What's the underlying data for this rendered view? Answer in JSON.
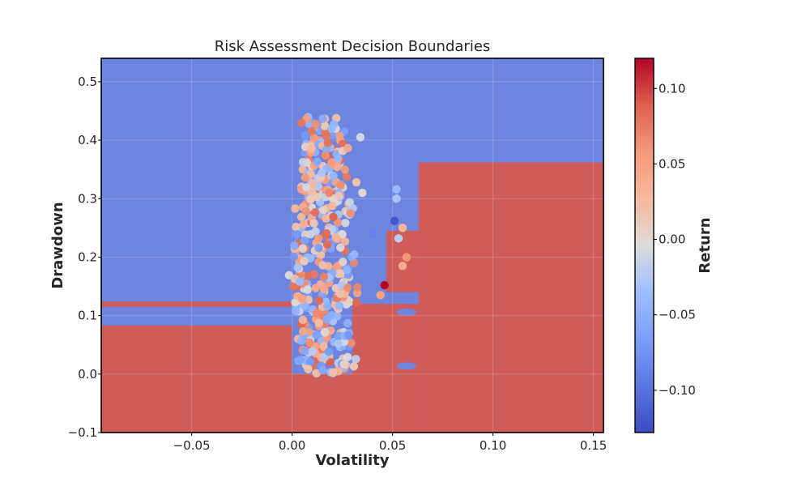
{
  "chart_data": {
    "type": "scatter",
    "title": "Risk Assessment Decision Boundaries",
    "xlabel": "Volatility",
    "ylabel": "Drawdown",
    "xlim": [
      -0.095,
      0.155
    ],
    "ylim": [
      -0.1,
      0.54
    ],
    "xticks": [
      -0.05,
      0.0,
      0.05,
      0.1,
      0.15
    ],
    "xtick_labels": [
      "−0.05",
      "0.00",
      "0.05",
      "0.10",
      "0.15"
    ],
    "yticks": [
      -0.1,
      0.0,
      0.1,
      0.2,
      0.3,
      0.4,
      0.5
    ],
    "ytick_labels": [
      "−0.1",
      "0.0",
      "0.1",
      "0.2",
      "0.3",
      "0.4",
      "0.5"
    ],
    "grid": true,
    "colorbar": {
      "label": "Return",
      "range": [
        -0.128,
        0.12
      ],
      "ticks": [
        -0.1,
        -0.05,
        0.0,
        0.05,
        0.1
      ],
      "tick_labels": [
        "−0.10",
        "−0.05",
        "0.00",
        "0.05",
        "0.10"
      ],
      "colormap": "coolwarm"
    },
    "boundary_colors": {
      "high": "#cf5c58",
      "low": "#6d85df",
      "mid": "#dcdddd"
    },
    "regions_high": [
      {
        "x": [
          -0.095,
          0.0
        ],
        "y": [
          -0.1,
          0.083
        ]
      },
      {
        "x": [
          -0.095,
          0.0
        ],
        "y": [
          0.03,
          0.037
        ]
      },
      {
        "x": [
          -0.095,
          0.0
        ],
        "y": [
          0.01,
          0.018
        ]
      },
      {
        "x": [
          -0.095,
          0.0
        ],
        "y": [
          0.115,
          0.124
        ]
      },
      {
        "x": [
          0.0,
          0.063
        ],
        "y": [
          -0.1,
          0.0
        ]
      },
      {
        "x": [
          0.063,
          0.155
        ],
        "y": [
          -0.1,
          0.362
        ]
      },
      {
        "x": [
          0.047,
          0.063
        ],
        "y": [
          0.14,
          0.245
        ]
      },
      {
        "x": [
          0.03,
          0.063
        ],
        "y": [
          -0.1,
          0.12
        ]
      }
    ],
    "regions_low": [
      {
        "x": [
          0.052,
          0.062
        ],
        "y": [
          0.1,
          0.112
        ]
      },
      {
        "x": [
          0.052,
          0.062
        ],
        "y": [
          0.008,
          0.02
        ]
      }
    ],
    "points": {
      "note_only_for_reference": "",
      "x_center": 0.016,
      "dense_x_range": [
        0.005,
        0.03
      ],
      "dense_y_range": [
        0.0,
        0.44
      ],
      "count": 420,
      "outliers": [
        {
          "x": 0.046,
          "y": 0.152,
          "c": 0.12
        },
        {
          "x": 0.051,
          "y": 0.262,
          "c": -0.12
        },
        {
          "x": 0.052,
          "y": 0.316,
          "c": -0.04
        },
        {
          "x": 0.052,
          "y": 0.3,
          "c": -0.03
        },
        {
          "x": 0.055,
          "y": 0.25,
          "c": 0.03
        },
        {
          "x": 0.053,
          "y": 0.232,
          "c": -0.02
        },
        {
          "x": 0.055,
          "y": 0.185,
          "c": 0.04
        },
        {
          "x": 0.057,
          "y": 0.2,
          "c": 0.06
        },
        {
          "x": 0.044,
          "y": 0.135,
          "c": 0.05
        },
        {
          "x": 0.04,
          "y": 0.24,
          "c": -0.09
        },
        {
          "x": 0.034,
          "y": 0.405,
          "c": -0.01
        },
        {
          "x": 0.032,
          "y": 0.328,
          "c": 0.02
        },
        {
          "x": 0.035,
          "y": 0.31,
          "c": 0.0
        }
      ]
    }
  }
}
